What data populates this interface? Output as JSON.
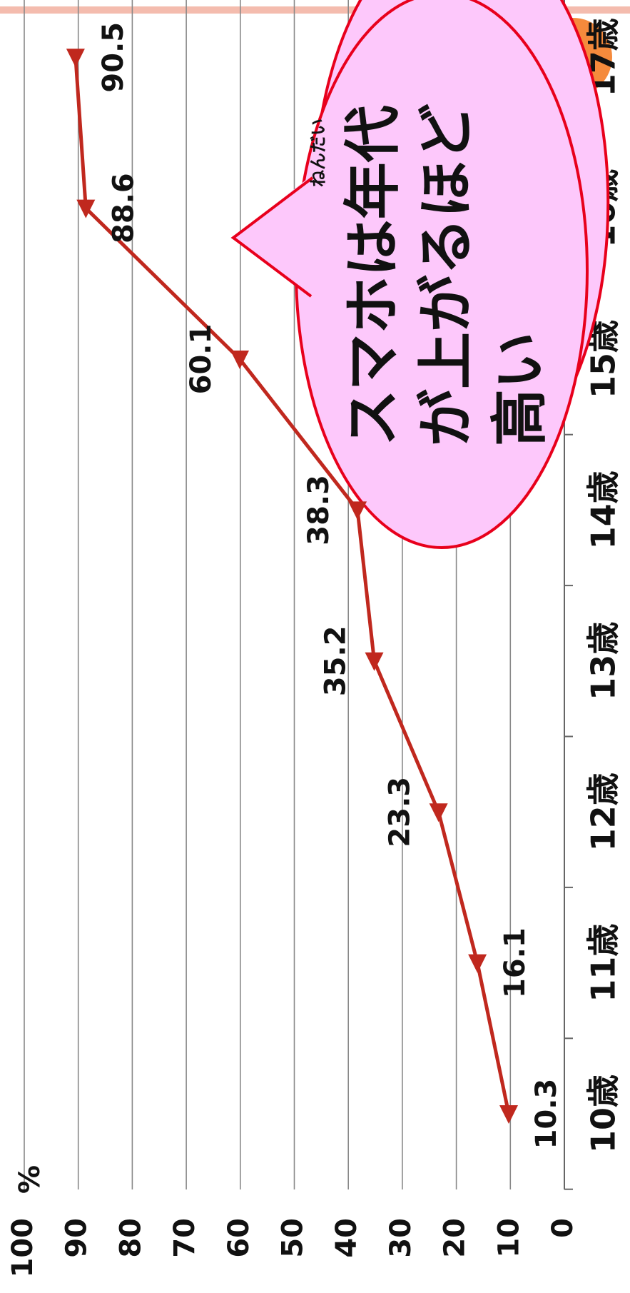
{
  "chart_data": {
    "type": "line",
    "categories": [
      "10歳",
      "11歳",
      "12歳",
      "13歳",
      "14歳",
      "15歳",
      "16歳",
      "17歳"
    ],
    "series": [
      {
        "name": "スマホ",
        "color": "#c0281e",
        "values": [
          10.3,
          16.1,
          23.3,
          35.2,
          38.3,
          60.1,
          88.6,
          90.5
        ]
      }
    ],
    "ylim": [
      0,
      100
    ],
    "yticks": [
      0,
      10,
      20,
      30,
      40,
      50,
      60,
      70,
      80,
      90,
      100
    ],
    "grid": true,
    "y_unit": "%",
    "annotation": {
      "lines": [
        "スマホは年代",
        "が上がるほど",
        "高い"
      ],
      "ruby": "ねんだい"
    }
  }
}
